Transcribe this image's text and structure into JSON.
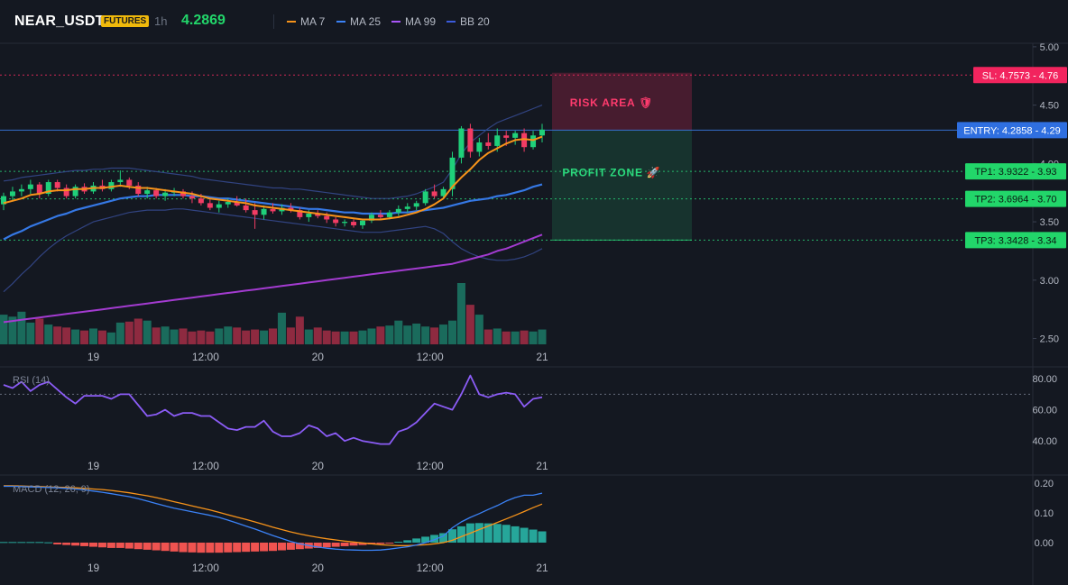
{
  "header": {
    "symbol": "NEAR_USDT",
    "badge": "FUTURES",
    "timeframe": "1h",
    "price": "4.2869",
    "legend": [
      {
        "label": "MA 7",
        "color": "#f7931a"
      },
      {
        "label": "MA 25",
        "color": "#3b82f6"
      },
      {
        "label": "MA 99",
        "color": "#a855f7"
      },
      {
        "label": "BB 20",
        "color": "#3b5bdb"
      }
    ]
  },
  "colors": {
    "up": "#1fd07a",
    "down": "#f23c64",
    "volume_up": "#1a6b5c",
    "volume_down": "#8e2a40",
    "bb": "#34488c",
    "macd": "#3b82f6",
    "signal": "#f7931a",
    "rsi": "#8b5cf6",
    "risk": "#ff2e63",
    "profit": "#2bd97c",
    "entry": "#3b82f6"
  },
  "chart_data": {
    "type": "candlestick",
    "x_ticks": [
      "19",
      "12:00",
      "20",
      "12:00",
      "21"
    ],
    "y_ticks": [
      "5.00",
      "4.50",
      "4.00",
      "3.50",
      "3.00",
      "2.50"
    ],
    "ylim": [
      2.45,
      5.03
    ],
    "ohlc": [
      [
        3.65,
        3.75,
        3.6,
        3.72
      ],
      [
        3.72,
        3.8,
        3.68,
        3.76
      ],
      [
        3.76,
        3.82,
        3.72,
        3.78
      ],
      [
        3.78,
        3.86,
        3.74,
        3.82
      ],
      [
        3.82,
        3.84,
        3.7,
        3.74
      ],
      [
        3.74,
        3.86,
        3.72,
        3.84
      ],
      [
        3.84,
        3.86,
        3.76,
        3.79
      ],
      [
        3.79,
        3.82,
        3.7,
        3.72
      ],
      [
        3.72,
        3.82,
        3.7,
        3.8
      ],
      [
        3.8,
        3.83,
        3.74,
        3.76
      ],
      [
        3.76,
        3.84,
        3.74,
        3.81
      ],
      [
        3.81,
        3.86,
        3.76,
        3.78
      ],
      [
        3.78,
        3.86,
        3.76,
        3.84
      ],
      [
        3.84,
        3.94,
        3.8,
        3.86
      ],
      [
        3.86,
        3.88,
        3.78,
        3.81
      ],
      [
        3.81,
        3.84,
        3.72,
        3.74
      ],
      [
        3.74,
        3.8,
        3.7,
        3.77
      ],
      [
        3.77,
        3.79,
        3.7,
        3.72
      ],
      [
        3.72,
        3.78,
        3.68,
        3.75
      ],
      [
        3.75,
        3.79,
        3.72,
        3.76
      ],
      [
        3.76,
        3.78,
        3.7,
        3.72
      ],
      [
        3.72,
        3.76,
        3.66,
        3.7
      ],
      [
        3.7,
        3.74,
        3.64,
        3.66
      ],
      [
        3.66,
        3.7,
        3.6,
        3.62
      ],
      [
        3.62,
        3.68,
        3.58,
        3.65
      ],
      [
        3.65,
        3.7,
        3.62,
        3.67
      ],
      [
        3.67,
        3.72,
        3.63,
        3.64
      ],
      [
        3.64,
        3.7,
        3.58,
        3.6
      ],
      [
        3.6,
        3.66,
        3.44,
        3.56
      ],
      [
        3.56,
        3.64,
        3.52,
        3.61
      ],
      [
        3.61,
        3.66,
        3.57,
        3.59
      ],
      [
        3.59,
        3.65,
        3.56,
        3.62
      ],
      [
        3.62,
        3.66,
        3.58,
        3.6
      ],
      [
        3.6,
        3.62,
        3.52,
        3.54
      ],
      [
        3.54,
        3.6,
        3.5,
        3.57
      ],
      [
        3.57,
        3.6,
        3.53,
        3.55
      ],
      [
        3.55,
        3.58,
        3.49,
        3.52
      ],
      [
        3.52,
        3.54,
        3.46,
        3.49
      ],
      [
        3.49,
        3.52,
        3.46,
        3.5
      ],
      [
        3.5,
        3.52,
        3.45,
        3.47
      ],
      [
        3.47,
        3.52,
        3.44,
        3.51
      ],
      [
        3.51,
        3.58,
        3.49,
        3.56
      ],
      [
        3.56,
        3.6,
        3.52,
        3.54
      ],
      [
        3.54,
        3.6,
        3.52,
        3.58
      ],
      [
        3.58,
        3.64,
        3.55,
        3.61
      ],
      [
        3.61,
        3.66,
        3.58,
        3.63
      ],
      [
        3.63,
        3.68,
        3.6,
        3.66
      ],
      [
        3.66,
        3.78,
        3.64,
        3.76
      ],
      [
        3.76,
        3.82,
        3.7,
        3.72
      ],
      [
        3.72,
        3.8,
        3.7,
        3.78
      ],
      [
        3.78,
        4.1,
        3.72,
        4.05
      ],
      [
        4.05,
        4.32,
        4.0,
        4.3
      ],
      [
        4.3,
        4.34,
        4.05,
        4.1
      ],
      [
        4.1,
        4.22,
        4.06,
        4.18
      ],
      [
        4.18,
        4.26,
        4.12,
        4.15
      ],
      [
        4.15,
        4.3,
        4.1,
        4.24
      ],
      [
        4.24,
        4.28,
        4.15,
        4.22
      ],
      [
        4.22,
        4.28,
        4.16,
        4.26
      ],
      [
        4.26,
        4.3,
        4.1,
        4.14
      ],
      [
        4.14,
        4.28,
        4.12,
        4.24
      ],
      [
        4.24,
        4.34,
        4.18,
        4.29
      ]
    ],
    "volume": [
      30,
      28,
      33,
      22,
      26,
      20,
      18,
      17,
      15,
      14,
      16,
      14,
      12,
      22,
      23,
      26,
      24,
      17,
      18,
      15,
      16,
      13,
      14,
      13,
      16,
      18,
      17,
      14,
      15,
      14,
      16,
      32,
      17,
      28,
      15,
      17,
      14,
      13,
      13,
      13,
      14,
      16,
      18,
      19,
      24,
      19,
      21,
      18,
      17,
      20,
      24,
      62,
      40,
      30,
      15,
      16,
      13,
      13,
      14,
      13,
      15
    ],
    "ma7": [
      3.66,
      3.68,
      3.7,
      3.73,
      3.74,
      3.76,
      3.77,
      3.77,
      3.78,
      3.78,
      3.79,
      3.79,
      3.8,
      3.81,
      3.8,
      3.79,
      3.79,
      3.78,
      3.77,
      3.76,
      3.75,
      3.74,
      3.72,
      3.7,
      3.69,
      3.68,
      3.67,
      3.66,
      3.64,
      3.63,
      3.62,
      3.61,
      3.6,
      3.59,
      3.58,
      3.57,
      3.56,
      3.55,
      3.54,
      3.53,
      3.52,
      3.52,
      3.52,
      3.53,
      3.54,
      3.56,
      3.58,
      3.61,
      3.65,
      3.7,
      3.8,
      3.88,
      3.95,
      4.03,
      4.09,
      4.13,
      4.17,
      4.2,
      4.21,
      4.2,
      4.23
    ],
    "ma25": [
      3.35,
      3.39,
      3.42,
      3.46,
      3.49,
      3.52,
      3.55,
      3.57,
      3.6,
      3.62,
      3.64,
      3.66,
      3.68,
      3.7,
      3.71,
      3.72,
      3.72,
      3.73,
      3.73,
      3.73,
      3.73,
      3.72,
      3.72,
      3.71,
      3.7,
      3.7,
      3.69,
      3.68,
      3.67,
      3.66,
      3.65,
      3.64,
      3.63,
      3.62,
      3.61,
      3.61,
      3.6,
      3.59,
      3.58,
      3.58,
      3.57,
      3.57,
      3.57,
      3.57,
      3.58,
      3.58,
      3.59,
      3.6,
      3.61,
      3.62,
      3.64,
      3.66,
      3.68,
      3.69,
      3.7,
      3.72,
      3.73,
      3.75,
      3.77,
      3.8,
      3.82
    ],
    "ma99": [
      2.64,
      2.65,
      2.66,
      2.67,
      2.68,
      2.69,
      2.7,
      2.71,
      2.72,
      2.73,
      2.74,
      2.75,
      2.76,
      2.77,
      2.78,
      2.79,
      2.8,
      2.81,
      2.82,
      2.83,
      2.84,
      2.85,
      2.86,
      2.87,
      2.88,
      2.89,
      2.9,
      2.91,
      2.92,
      2.93,
      2.94,
      2.95,
      2.96,
      2.97,
      2.98,
      2.99,
      3.0,
      3.01,
      3.02,
      3.03,
      3.04,
      3.05,
      3.06,
      3.07,
      3.08,
      3.09,
      3.1,
      3.11,
      3.12,
      3.13,
      3.14,
      3.16,
      3.18,
      3.2,
      3.22,
      3.25,
      3.27,
      3.3,
      3.33,
      3.36,
      3.39
    ],
    "bb_upper": [
      3.85,
      3.86,
      3.88,
      3.89,
      3.9,
      3.91,
      3.92,
      3.93,
      3.94,
      3.94,
      3.95,
      3.95,
      3.96,
      3.96,
      3.96,
      3.95,
      3.94,
      3.93,
      3.92,
      3.91,
      3.9,
      3.89,
      3.87,
      3.86,
      3.85,
      3.84,
      3.83,
      3.82,
      3.81,
      3.8,
      3.79,
      3.79,
      3.78,
      3.78,
      3.77,
      3.76,
      3.75,
      3.74,
      3.73,
      3.72,
      3.71,
      3.7,
      3.7,
      3.7,
      3.71,
      3.72,
      3.74,
      3.77,
      3.8,
      3.84,
      3.95,
      4.08,
      4.18,
      4.24,
      4.3,
      4.35,
      4.38,
      4.41,
      4.44,
      4.47,
      4.5
    ],
    "bb_lower": [
      2.9,
      2.97,
      3.05,
      3.12,
      3.2,
      3.27,
      3.33,
      3.38,
      3.42,
      3.46,
      3.5,
      3.52,
      3.54,
      3.56,
      3.58,
      3.59,
      3.6,
      3.6,
      3.6,
      3.61,
      3.61,
      3.6,
      3.59,
      3.58,
      3.57,
      3.56,
      3.55,
      3.54,
      3.53,
      3.52,
      3.51,
      3.5,
      3.49,
      3.48,
      3.47,
      3.46,
      3.45,
      3.44,
      3.43,
      3.42,
      3.41,
      3.41,
      3.41,
      3.42,
      3.43,
      3.44,
      3.45,
      3.46,
      3.44,
      3.4,
      3.33,
      3.27,
      3.23,
      3.2,
      3.18,
      3.17,
      3.17,
      3.18,
      3.2,
      3.23,
      3.27
    ],
    "trade": {
      "sl": 4.7573,
      "entry": 4.2858,
      "tp1": 3.9322,
      "tp2": 3.6964,
      "tp3": 3.3428,
      "sl_label": "SL: 4.7573 - 4.76",
      "entry_label": "ENTRY: 4.2858 - 4.29",
      "tp1_label": "TP1: 3.9322 - 3.93",
      "tp2_label": "TP2: 3.6964 - 3.70",
      "tp3_label": "TP3: 3.3428 - 3.34",
      "risk_label": "RISK AREA 🛡",
      "profit_label": "PROFIT ZONE 🚀"
    },
    "rsi": {
      "label": "RSI (14)",
      "y_ticks": [
        "80.00",
        "60.00",
        "40.00"
      ],
      "ylim": [
        32,
        87
      ],
      "level": 70,
      "values": [
        76,
        74,
        78,
        72,
        76,
        78,
        73,
        68,
        64,
        69,
        69,
        69,
        67,
        70,
        70,
        63,
        56,
        57,
        60,
        56,
        58,
        58,
        56,
        56,
        52,
        48,
        47,
        49,
        49,
        53,
        46,
        43,
        43,
        45,
        50,
        48,
        43,
        45,
        40,
        42,
        40,
        39,
        38,
        38,
        46,
        48,
        52,
        58,
        64,
        62,
        60,
        70,
        82,
        70,
        68,
        70,
        71,
        70,
        62,
        67,
        68
      ]
    },
    "macd": {
      "label": "MACD (12, 26, 9)",
      "y_ticks": [
        "0.20",
        "0.10",
        "0.00"
      ],
      "ylim": [
        -0.07,
        0.225
      ],
      "macd": [
        0.19,
        0.19,
        0.189,
        0.188,
        0.187,
        0.186,
        0.185,
        0.183,
        0.181,
        0.178,
        0.174,
        0.17,
        0.165,
        0.16,
        0.155,
        0.148,
        0.14,
        0.132,
        0.124,
        0.116,
        0.11,
        0.104,
        0.098,
        0.092,
        0.085,
        0.076,
        0.066,
        0.056,
        0.046,
        0.035,
        0.024,
        0.014,
        0.004,
        -0.004,
        -0.01,
        -0.015,
        -0.019,
        -0.022,
        -0.024,
        -0.025,
        -0.026,
        -0.026,
        -0.025,
        -0.022,
        -0.018,
        -0.014,
        -0.008,
        0.0,
        0.01,
        0.022,
        0.05,
        0.07,
        0.085,
        0.098,
        0.112,
        0.125,
        0.14,
        0.152,
        0.16,
        0.16,
        0.167
      ],
      "signal": [
        0.192,
        0.192,
        0.191,
        0.19,
        0.189,
        0.188,
        0.187,
        0.186,
        0.185,
        0.183,
        0.181,
        0.179,
        0.176,
        0.172,
        0.168,
        0.163,
        0.158,
        0.152,
        0.145,
        0.138,
        0.131,
        0.124,
        0.117,
        0.11,
        0.102,
        0.094,
        0.086,
        0.078,
        0.07,
        0.061,
        0.052,
        0.044,
        0.036,
        0.029,
        0.023,
        0.018,
        0.013,
        0.009,
        0.005,
        0.002,
        -0.001,
        -0.004,
        -0.007,
        -0.009,
        -0.01,
        -0.01,
        -0.009,
        -0.007,
        -0.004,
        0.0,
        0.008,
        0.02,
        0.032,
        0.044,
        0.056,
        0.068,
        0.08,
        0.092,
        0.105,
        0.118,
        0.13
      ],
      "hist": [
        0.002,
        0.002,
        0.002,
        0.002,
        0.002,
        0.001,
        -0.006,
        -0.008,
        -0.01,
        -0.012,
        -0.014,
        -0.016,
        -0.018,
        -0.018,
        -0.02,
        -0.022,
        -0.024,
        -0.026,
        -0.028,
        -0.03,
        -0.032,
        -0.033,
        -0.034,
        -0.034,
        -0.034,
        -0.033,
        -0.032,
        -0.031,
        -0.03,
        -0.029,
        -0.028,
        -0.026,
        -0.024,
        -0.022,
        -0.02,
        -0.018,
        -0.016,
        -0.014,
        -0.012,
        -0.01,
        -0.008,
        -0.006,
        -0.004,
        -0.002,
        0.003,
        0.008,
        0.014,
        0.02,
        0.026,
        0.032,
        0.045,
        0.055,
        0.065,
        0.066,
        0.065,
        0.063,
        0.06,
        0.055,
        0.05,
        0.044,
        0.038
      ]
    }
  }
}
